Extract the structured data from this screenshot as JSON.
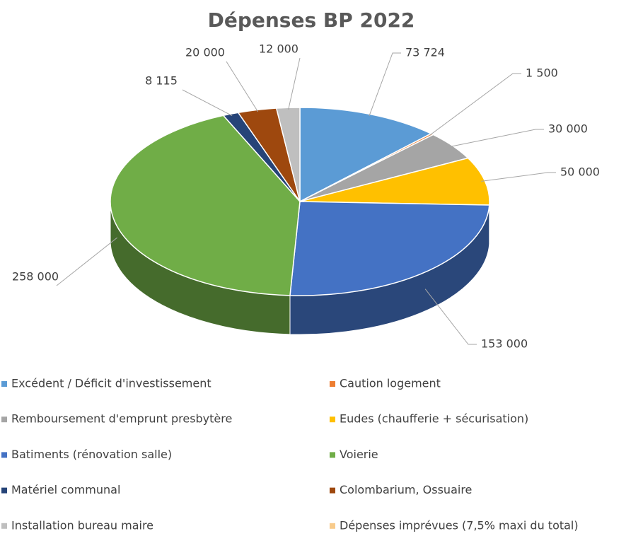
{
  "chart_data": {
    "type": "pie",
    "title": "Dépenses BP 2022",
    "categories": [
      "Excédent / Déficit d'investissement",
      "Caution logement",
      "Remboursement d'emprunt presbytère",
      "Eudes (chaufferie + sécurisation)",
      "Batiments (rénovation salle)",
      "Voierie",
      "Matériel communal",
      "Colombarium, Ossuaire",
      "Installation bureau maire",
      "Dépenses imprévues (7,5% maxi du total)"
    ],
    "values": [
      73724,
      1500,
      30000,
      50000,
      153000,
      258000,
      8115,
      20000,
      12000,
      null
    ],
    "value_labels": [
      "73 724",
      "1 500",
      "30 000",
      "50 000",
      "153 000",
      "258 000",
      "8 115",
      "20 000",
      "12 000",
      null
    ],
    "colors": [
      "#5b9bd5",
      "#ed7d31",
      "#a5a5a5",
      "#ffc000",
      "#4472c4",
      "#70ad47",
      "#264478",
      "#9e480e",
      "#bfbfbf",
      "#f8cb8b"
    ],
    "legend": "bottom"
  }
}
